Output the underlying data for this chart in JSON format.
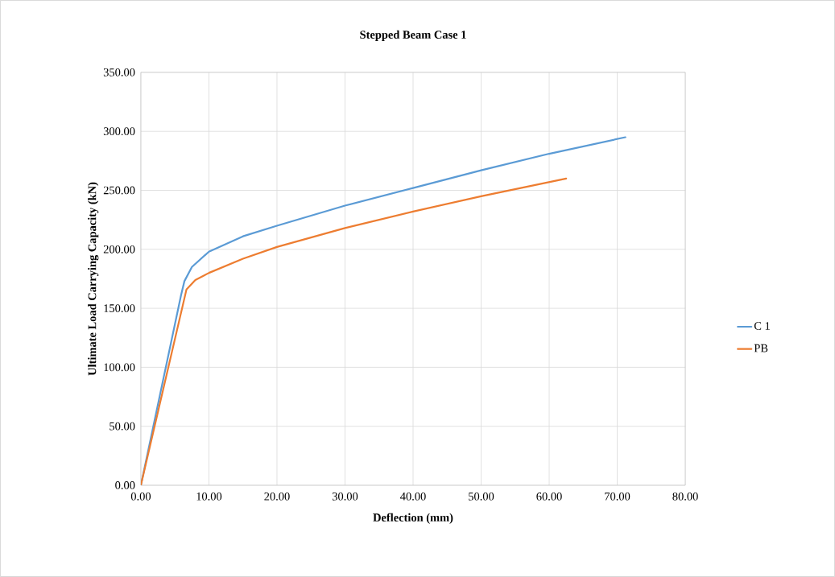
{
  "chart_data": {
    "type": "line",
    "title": "Stepped Beam Case 1",
    "xlabel": "Deflection (mm)",
    "ylabel": "Ultimate Load Carrying Capacity (kN)",
    "series": [
      {
        "name": "C 1",
        "color": "#5b9bd5",
        "x": [
          0,
          5.9,
          6.4,
          7.5,
          10,
          15,
          20,
          30,
          40,
          50,
          60,
          71.2
        ],
        "values": [
          0,
          161,
          173,
          185,
          198,
          211,
          220,
          237,
          252,
          267,
          281,
          295
        ]
      },
      {
        "name": "PB",
        "color": "#ed7d31",
        "x": [
          0,
          6.7,
          8,
          10,
          15,
          20,
          30,
          40,
          50,
          62.5
        ],
        "values": [
          0,
          166,
          174,
          180,
          192,
          202,
          218,
          232,
          245,
          260
        ]
      }
    ],
    "xlim": [
      0,
      80
    ],
    "ylim": [
      0,
      350
    ],
    "xticks": [
      {
        "value": 0,
        "label": "0.00"
      },
      {
        "value": 10,
        "label": "10.00"
      },
      {
        "value": 20,
        "label": "20.00"
      },
      {
        "value": 30,
        "label": "30.00"
      },
      {
        "value": 40,
        "label": "40.00"
      },
      {
        "value": 50,
        "label": "50.00"
      },
      {
        "value": 60,
        "label": "60.00"
      },
      {
        "value": 70,
        "label": "70.00"
      },
      {
        "value": 80,
        "label": "80.00"
      }
    ],
    "yticks": [
      {
        "value": 0,
        "label": "0.00"
      },
      {
        "value": 50,
        "label": "50.00"
      },
      {
        "value": 100,
        "label": "100.00"
      },
      {
        "value": 150,
        "label": "150.00"
      },
      {
        "value": 200,
        "label": "200.00"
      },
      {
        "value": 250,
        "label": "250.00"
      },
      {
        "value": 300,
        "label": "300.00"
      },
      {
        "value": 350,
        "label": "350.00"
      }
    ],
    "grid": true,
    "legend": "right",
    "marker": "none",
    "line_style": "solid"
  }
}
